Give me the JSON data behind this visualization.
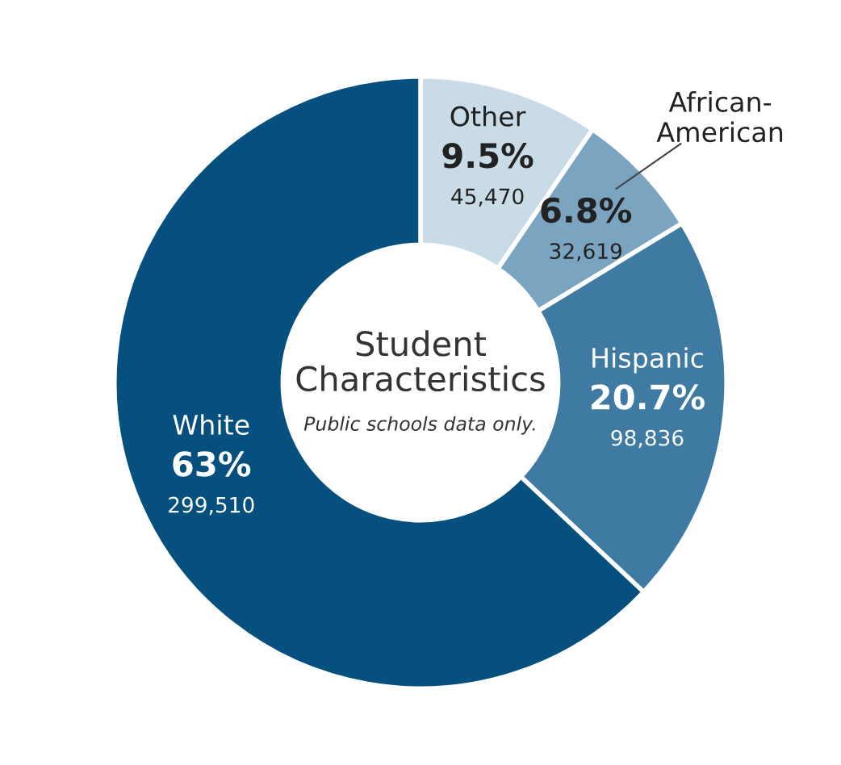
{
  "chart_data": {
    "type": "donut",
    "title": "Student\nCharacteristics",
    "subtitle": "Public schools data only.",
    "categories": [
      "Other",
      "African-\nAmerican",
      "Hispanic",
      "White"
    ],
    "values": [
      9.5,
      6.8,
      20.7,
      63
    ],
    "value_labels": [
      "9.5%",
      "6.8%",
      "20.7%",
      "63%"
    ],
    "colors": [
      "#c9dbe6",
      "#7ba4c0",
      "#3f7aa3",
      "#05507e"
    ],
    "annotations": [
      {
        "text": "45,470",
        "x": "Other"
      },
      {
        "text": "32,619",
        "x": "African-\nAmerican"
      },
      {
        "text": "98,836",
        "x": "Hispanic"
      },
      {
        "text": "299,510",
        "x": "White"
      }
    ],
    "legend": false
  }
}
